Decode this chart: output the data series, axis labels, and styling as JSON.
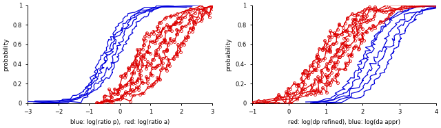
{
  "left_plot": {
    "xlabel": "blue: log(ratio p),  red: log(ratio a)",
    "ylabel": "probability",
    "xlim": [
      -3,
      3
    ],
    "ylim": [
      0,
      1
    ],
    "xticks": [
      -3,
      -2,
      -1,
      0,
      1,
      2,
      3
    ],
    "yticks": [
      0,
      0.2,
      0.4,
      0.6,
      0.8,
      1.0
    ],
    "ytick_labels": [
      "0",
      "0.2",
      "0.4",
      "0.6",
      "0.8",
      "1"
    ],
    "blue_curves": {
      "means": [
        -0.55,
        -0.42,
        -0.3,
        -0.18,
        -0.06
      ],
      "scale": 0.38,
      "x_start": -3.0,
      "x_end": 2.6
    },
    "red_curves": {
      "means": [
        0.55,
        0.85,
        1.15,
        1.5,
        1.85
      ],
      "scale": 0.55,
      "x_start": -0.3,
      "x_end": 2.6
    }
  },
  "right_plot": {
    "xlabel": "red: log(dp refined), blue: log(da appr)",
    "ylabel": "probability",
    "xlim": [
      -1,
      4
    ],
    "ylim": [
      0,
      1
    ],
    "xticks": [
      -1,
      0,
      1,
      2,
      3,
      4
    ],
    "yticks": [
      0,
      0.2,
      0.4,
      0.6,
      0.8,
      1.0
    ],
    "ytick_labels": [
      "0",
      "0.2-",
      "0.4-",
      "0.6",
      "0.8",
      "1"
    ],
    "red_curves": {
      "means": [
        0.8,
        1.0,
        1.2,
        1.45,
        1.7
      ],
      "scale": 0.42,
      "x_start": -0.7,
      "x_end": 3.8
    },
    "blue_curves": {
      "means": [
        2.05,
        2.2,
        2.4,
        2.6,
        2.8
      ],
      "scale": 0.35,
      "x_start": 1.0,
      "x_end": 4.0
    }
  },
  "blue_color": "#0000dd",
  "red_color": "#dd0000",
  "line_width": 0.9,
  "marker_size": 2.8,
  "font_size": 6.5
}
